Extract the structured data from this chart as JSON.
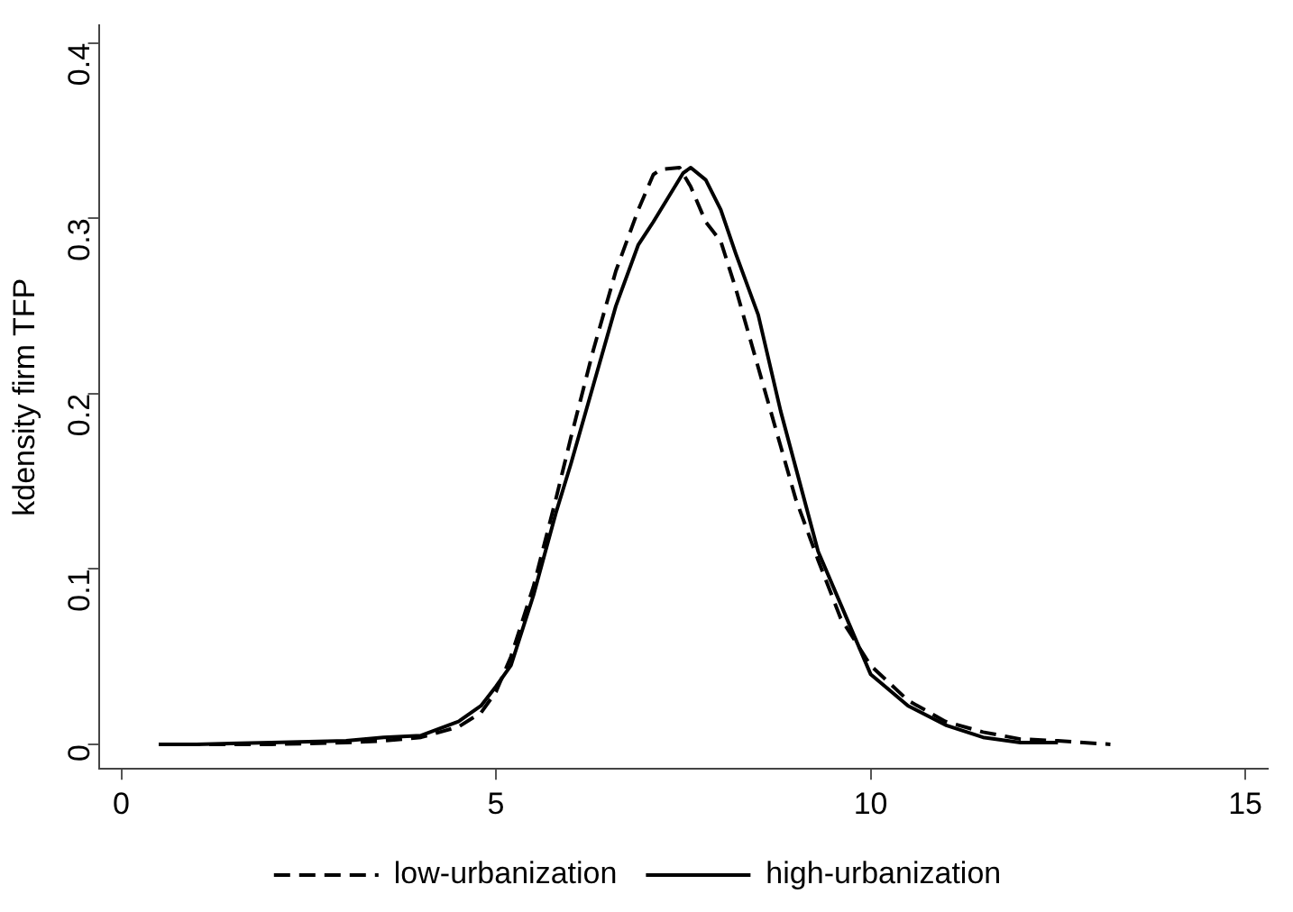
{
  "chart_data": {
    "type": "line",
    "ylabel": "kdensity firm TFP",
    "xlim": [
      -0.3,
      15.3
    ],
    "xticks": [
      0,
      5,
      10,
      15
    ],
    "ylim": [
      -0.014,
      0.41
    ],
    "yticks": [
      0,
      0.1,
      0.2,
      0.3,
      0.4
    ],
    "grid": false,
    "legend": "bottom",
    "marker": "none",
    "series": [
      {
        "name": "low-urbanization",
        "color": "#000000",
        "line_style": "dashed",
        "x": [
          0.5,
          1,
          2,
          3,
          3.5,
          4,
          4.5,
          4.8,
          5,
          5.2,
          5.5,
          5.8,
          6,
          6.3,
          6.6,
          6.9,
          7.1,
          7.2,
          7.45,
          7.6,
          7.8,
          8,
          8.2,
          8.5,
          8.8,
          9,
          9.3,
          9.6,
          10,
          10.5,
          11,
          11.5,
          12,
          12.5,
          13.2
        ],
        "values": [
          0,
          0,
          0,
          0.001,
          0.002,
          0.004,
          0.01,
          0.018,
          0.03,
          0.05,
          0.09,
          0.14,
          0.175,
          0.225,
          0.27,
          0.305,
          0.325,
          0.328,
          0.329,
          0.318,
          0.298,
          0.287,
          0.26,
          0.215,
          0.17,
          0.14,
          0.105,
          0.072,
          0.045,
          0.025,
          0.013,
          0.007,
          0.003,
          0.002,
          0
        ]
      },
      {
        "name": "high-urbanization",
        "color": "#000000",
        "line_style": "solid",
        "x": [
          0.5,
          1,
          2,
          3,
          3.5,
          4,
          4.5,
          4.8,
          5,
          5.2,
          5.5,
          5.8,
          6,
          6.3,
          6.6,
          6.9,
          7.1,
          7.3,
          7.5,
          7.6,
          7.8,
          8,
          8.2,
          8.5,
          8.8,
          9,
          9.3,
          9.6,
          10,
          10.5,
          11,
          11.5,
          12,
          12.5
        ],
        "values": [
          0,
          0,
          0.001,
          0.002,
          0.004,
          0.005,
          0.013,
          0.022,
          0.033,
          0.045,
          0.085,
          0.132,
          0.16,
          0.205,
          0.25,
          0.285,
          0.298,
          0.312,
          0.326,
          0.329,
          0.322,
          0.305,
          0.28,
          0.245,
          0.19,
          0.158,
          0.11,
          0.08,
          0.04,
          0.022,
          0.011,
          0.004,
          0.001,
          0.001
        ]
      }
    ]
  }
}
